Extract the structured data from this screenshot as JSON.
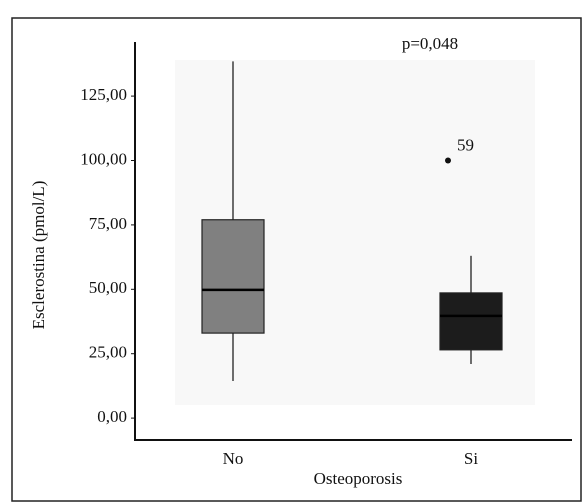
{
  "chart_data": {
    "type": "box",
    "y_label": "Esclerostina (pmol/L)",
    "x_label": "Osteoporosis",
    "annotation": "p=0,048",
    "categories": [
      "No",
      "Si"
    ],
    "colors": [
      "#808080",
      "#1c1c1c"
    ],
    "boxes": [
      {
        "min": 14.4,
        "q1": 33,
        "median": 49.8,
        "q3": 77,
        "max": 138.5
      },
      {
        "min": 21,
        "q1": 26.5,
        "median": 39.7,
        "q3": 48.6,
        "max": 63
      }
    ],
    "outliers": [
      [],
      [
        {
          "value": 100,
          "label": "59"
        }
      ]
    ],
    "ylim": [
      -8.5,
      146
    ],
    "yticks": [
      {
        "value": 0,
        "label": "0,00"
      },
      {
        "value": 25,
        "label": "25,00"
      },
      {
        "value": 50,
        "label": "50,00"
      },
      {
        "value": 75,
        "label": "75,00"
      },
      {
        "value": 100,
        "label": "100,00"
      },
      {
        "value": 125,
        "label": "125,00"
      }
    ]
  }
}
